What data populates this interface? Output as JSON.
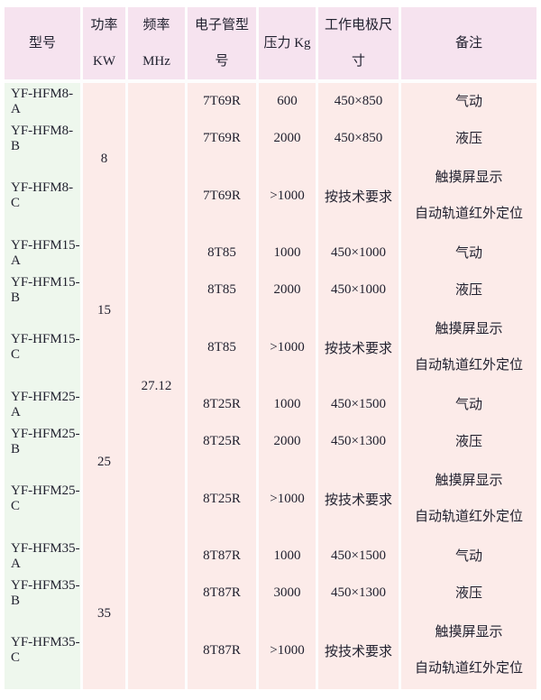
{
  "colors": {
    "header_bg": "#f6e3ef",
    "row_pink": "#fcebe9",
    "model_green": "#eef7ed",
    "separator": "#fdfdfd",
    "text": "#21212f",
    "page_bg": "#ffffff"
  },
  "table": {
    "headers": [
      {
        "line1": "型号"
      },
      {
        "line1": "功率",
        "line2": "KW"
      },
      {
        "line1": "频率",
        "line2": "MHz"
      },
      {
        "line1": "电子管型号"
      },
      {
        "line1": "压力 Kg"
      },
      {
        "line1": "工作电极尺寸"
      },
      {
        "line1": "备注"
      }
    ],
    "frequency_mhz": "27.12",
    "groups": [
      {
        "power_kw": "8",
        "rows": [
          {
            "model": "YF-HFM8-A",
            "tube": "7T69R",
            "pressure": "600",
            "electrode": "450×850",
            "remarks": [
              "气动"
            ]
          },
          {
            "model": "YF-HFM8-B",
            "tube": "7T69R",
            "pressure": "2000",
            "electrode": "450×850",
            "remarks": [
              "液压"
            ]
          },
          {
            "model": "YF-HFM8-C",
            "tube": "7T69R",
            "pressure": ">1000",
            "electrode": "按技术要求",
            "remarks": [
              "触摸屏显示",
              "自动轨道红外定位"
            ]
          }
        ]
      },
      {
        "power_kw": "15",
        "rows": [
          {
            "model": "YF-HFM15-A",
            "tube": "8T85",
            "pressure": "1000",
            "electrode": "450×1000",
            "remarks": [
              "气动"
            ]
          },
          {
            "model": "YF-HFM15-B",
            "tube": "8T85",
            "pressure": "2000",
            "electrode": "450×1000",
            "remarks": [
              "液压"
            ]
          },
          {
            "model": "YF-HFM15-C",
            "tube": "8T85",
            "pressure": ">1000",
            "electrode": "按技术要求",
            "remarks": [
              "触摸屏显示",
              "自动轨道红外定位"
            ]
          }
        ]
      },
      {
        "power_kw": "25",
        "rows": [
          {
            "model": "YF-HFM25-A",
            "tube": "8T25R",
            "pressure": "1000",
            "electrode": "450×1500",
            "remarks": [
              "气动"
            ]
          },
          {
            "model": "YF-HFM25-B",
            "tube": "8T25R",
            "pressure": "2000",
            "electrode": "450×1300",
            "remarks": [
              "液压"
            ]
          },
          {
            "model": "YF-HFM25-C",
            "tube": "8T25R",
            "pressure": ">1000",
            "electrode": "按技术要求",
            "remarks": [
              "触摸屏显示",
              "自动轨道红外定位"
            ]
          }
        ]
      },
      {
        "power_kw": "35",
        "rows": [
          {
            "model": "YF-HFM35-A",
            "tube": "8T87R",
            "pressure": "1000",
            "electrode": "450×1500",
            "remarks": [
              "气动"
            ]
          },
          {
            "model": "YF-HFM35-B",
            "tube": "8T87R",
            "pressure": "3000",
            "electrode": "450×1300",
            "remarks": [
              "液压"
            ]
          },
          {
            "model": "YF-HFM35-C",
            "tube": "8T87R",
            "pressure": ">1000",
            "electrode": "按技术要求",
            "remarks": [
              "触摸屏显示",
              "自动轨道红外定位"
            ]
          }
        ]
      }
    ]
  }
}
